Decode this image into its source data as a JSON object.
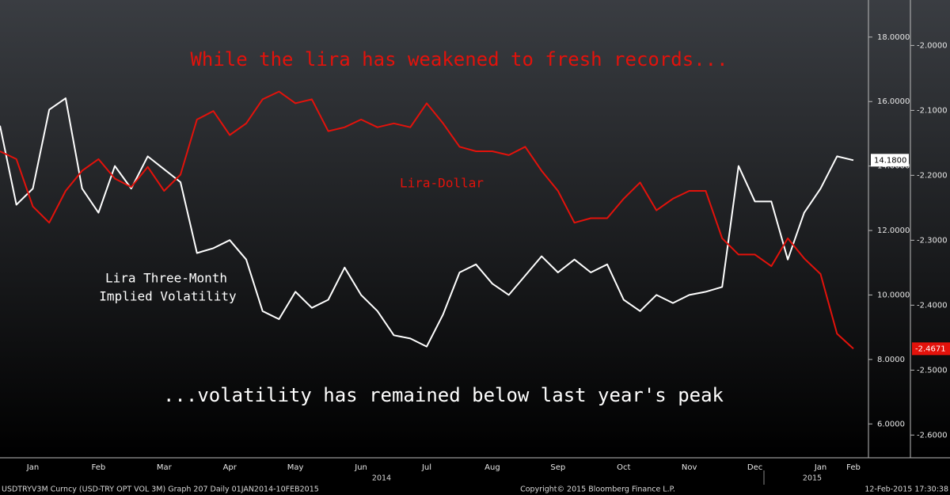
{
  "chart_data": {
    "type": "line",
    "title": "While the lira has weakened to fresh records...",
    "subtitle": "...volatility has remained below last year's peak",
    "categories": [
      null,
      null,
      "Jan",
      null,
      null,
      null,
      "Feb",
      null,
      null,
      null,
      "Mar",
      null,
      null,
      null,
      "Apr",
      null,
      null,
      null,
      "May",
      null,
      null,
      null,
      "Jun",
      null,
      null,
      null,
      "Jul",
      null,
      null,
      null,
      "Aug",
      null,
      null,
      null,
      "Sep",
      null,
      null,
      null,
      "Oct",
      null,
      null,
      null,
      "Nov",
      null,
      null,
      null,
      "Dec",
      null,
      null,
      null,
      "Jan",
      null,
      "Feb"
    ],
    "year_labels": [
      "2014",
      "2015"
    ],
    "series": [
      {
        "name": "Lira Three-Month Implied Volatility",
        "label_lines": [
          "Lira Three-Month",
          "Implied Volatility"
        ],
        "color": "#ffffff",
        "axis": "y",
        "values": [
          15.25,
          12.8,
          13.3,
          15.75,
          16.1,
          13.3,
          12.55,
          14.0,
          13.3,
          14.3,
          13.9,
          13.5,
          11.3,
          11.45,
          11.7,
          11.1,
          9.5,
          9.25,
          10.1,
          9.6,
          9.85,
          10.85,
          10.0,
          9.5,
          8.75,
          8.65,
          8.4,
          9.4,
          10.7,
          10.95,
          10.35,
          10.0,
          10.6,
          11.2,
          10.7,
          11.1,
          10.7,
          10.95,
          9.85,
          9.5,
          10.0,
          9.75,
          10.0,
          10.1,
          10.25,
          14.0,
          12.9,
          12.9,
          11.1,
          12.55,
          13.3,
          14.3,
          14.18
        ],
        "value_labels": [
          null,
          null,
          null,
          null,
          null,
          null,
          null,
          null,
          null,
          null,
          null,
          null,
          null,
          null,
          null,
          null,
          null,
          null,
          null,
          null,
          null,
          null,
          null,
          null,
          null,
          null,
          null,
          null,
          null,
          null,
          null,
          null,
          null,
          null,
          null,
          null,
          null,
          null,
          null,
          null,
          null,
          null,
          null,
          null,
          null,
          null,
          null,
          null,
          null,
          null,
          null,
          null,
          "14.1800"
        ]
      },
      {
        "name": "Lira-Dollar",
        "color": "#e3120b",
        "axis": "y2",
        "values": [
          -2.163,
          -2.175,
          -2.248,
          -2.273,
          -2.224,
          -2.193,
          -2.175,
          -2.205,
          -2.218,
          -2.187,
          -2.224,
          -2.199,
          -2.114,
          -2.101,
          -2.138,
          -2.12,
          -2.083,
          -2.071,
          -2.089,
          -2.083,
          -2.132,
          -2.126,
          -2.114,
          -2.126,
          -2.12,
          -2.126,
          -2.089,
          -2.12,
          -2.156,
          -2.163,
          -2.163,
          -2.169,
          -2.156,
          -2.193,
          -2.224,
          -2.273,
          -2.266,
          -2.266,
          -2.236,
          -2.211,
          -2.254,
          -2.236,
          -2.224,
          -2.224,
          -2.297,
          -2.322,
          -2.322,
          -2.34,
          -2.297,
          -2.328,
          -2.352,
          -2.444,
          -2.4671
        ],
        "value_labels": [
          null,
          null,
          null,
          null,
          null,
          null,
          null,
          null,
          null,
          null,
          null,
          null,
          null,
          null,
          null,
          null,
          null,
          null,
          null,
          null,
          null,
          null,
          null,
          null,
          null,
          null,
          null,
          null,
          null,
          null,
          null,
          null,
          null,
          null,
          null,
          null,
          null,
          null,
          null,
          null,
          null,
          null,
          null,
          null,
          null,
          null,
          null,
          null,
          null,
          null,
          null,
          null,
          "-2.4671"
        ]
      }
    ],
    "ylim": [
      4.95,
      19.15
    ],
    "yticks": [
      {
        "value": 6,
        "label": "6.0000"
      },
      {
        "value": 8,
        "label": "8.0000"
      },
      {
        "value": 10,
        "label": "10.0000"
      },
      {
        "value": 12,
        "label": "12.0000"
      },
      {
        "value": 14,
        "label": "14.0000"
      },
      {
        "value": 16,
        "label": "16.0000"
      },
      {
        "value": 18,
        "label": "18.0000"
      }
    ],
    "y2lim": [
      -2.635,
      -1.93
    ],
    "y2ticks": [
      {
        "value": -2.6,
        "label": "-2.6000"
      },
      {
        "value": -2.5,
        "label": "-2.5000"
      },
      {
        "value": -2.4,
        "label": "-2.4000"
      },
      {
        "value": -2.3,
        "label": "-2.3000"
      },
      {
        "value": -2.2,
        "label": "-2.2000"
      },
      {
        "value": -2.1,
        "label": "-2.1000"
      },
      {
        "value": -2,
        "label": "-2.0000"
      }
    ],
    "grid": false,
    "footer": {
      "left": "USDTRYV3M Curncy (USD-TRY OPT VOL 3M) Graph 207  Daily 01JAN2014-10FEB2015",
      "center": "Copyright© 2015 Bloomberg Finance L.P.",
      "right": "12-Feb-2015 17:30:38"
    }
  }
}
